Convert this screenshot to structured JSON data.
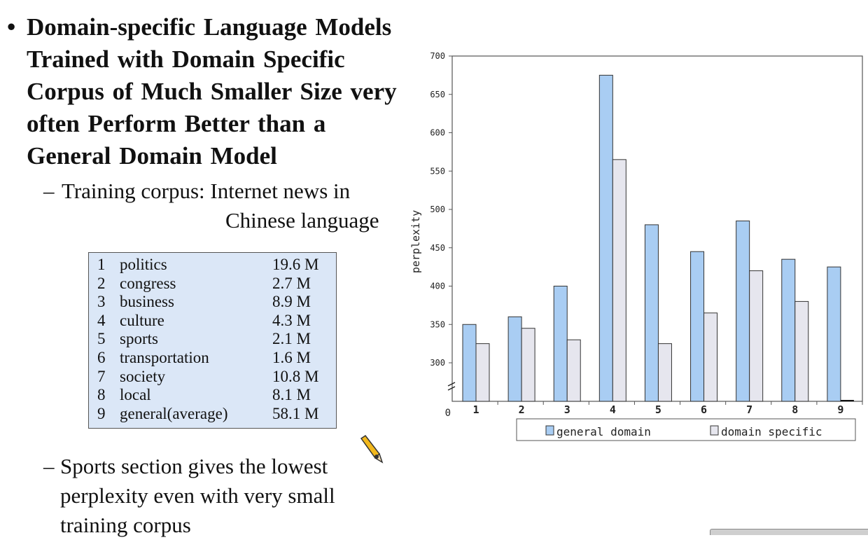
{
  "slide": {
    "heading_lines": [
      "Domain-specific Language Models",
      "Trained with Domain Specific",
      "Corpus of Much Smaller Size very",
      "often Perform Better than a",
      "General Domain Model"
    ],
    "bullet_glyph": "•",
    "sub_dash": "–",
    "training_corpus_line1": "Training corpus: Internet news in",
    "training_corpus_line2": "Chinese language",
    "sports_note_lines": [
      "Sports section gives the lowest",
      "perplexity even with very small",
      "training corpus"
    ]
  },
  "corpus_table": [
    {
      "num": "1",
      "name": "politics",
      "size": "19.6 M"
    },
    {
      "num": "2",
      "name": "congress",
      "size": "2.7 M"
    },
    {
      "num": "3",
      "name": "business",
      "size": "8.9 M"
    },
    {
      "num": "4",
      "name": "culture",
      "size": "4.3 M"
    },
    {
      "num": "5",
      "name": "sports",
      "size": "2.1 M"
    },
    {
      "num": "6",
      "name": "transportation",
      "size": "1.6 M"
    },
    {
      "num": "7",
      "name": "society",
      "size": "10.8 M"
    },
    {
      "num": "8",
      "name": "local",
      "size": "8.1 M"
    },
    {
      "num": "9",
      "name": "general(average)",
      "size": "58.1 M"
    }
  ],
  "chart_data": {
    "type": "bar",
    "title": "",
    "xlabel": "",
    "ylabel": "perplexity",
    "categories": [
      "1",
      "2",
      "3",
      "4",
      "5",
      "6",
      "7",
      "8",
      "9"
    ],
    "series": [
      {
        "name": "general domain",
        "values": [
          350,
          360,
          400,
          675,
          480,
          445,
          485,
          435,
          425
        ],
        "color": "#a9cdf3"
      },
      {
        "name": "domain specific",
        "values": [
          325,
          345,
          330,
          565,
          325,
          365,
          420,
          380,
          null
        ],
        "color": "#e6e6ee"
      }
    ],
    "yticks": [
      300,
      350,
      400,
      450,
      500,
      550,
      600,
      650,
      700
    ],
    "ylim": [
      250,
      700
    ],
    "y_axis_break": true,
    "origin_label": "0",
    "grid": false,
    "legend_position": "bottom",
    "border_color": "#555555"
  }
}
